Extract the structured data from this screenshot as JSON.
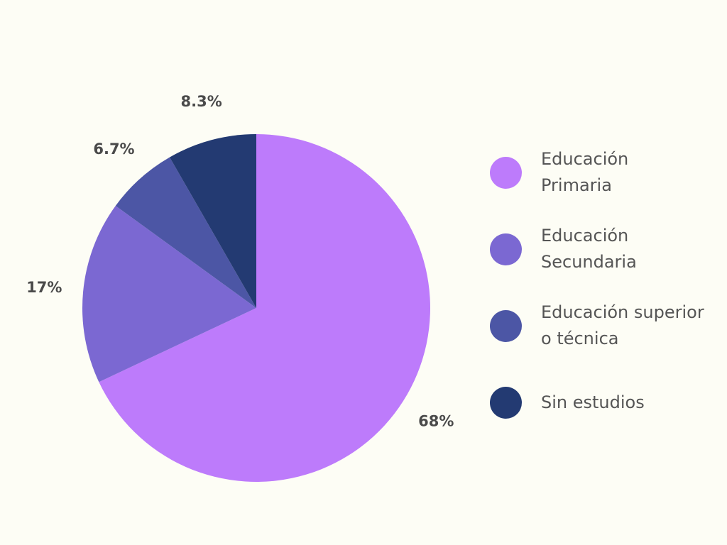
{
  "chart_data": {
    "type": "pie",
    "title": "",
    "slices": [
      {
        "label": "Educación\nPrimaria",
        "value": 68,
        "display": "68%",
        "color": "#bd7bfb"
      },
      {
        "label": "Educación\nSecundaria",
        "value": 17,
        "display": "17%",
        "color": "#7b68d2"
      },
      {
        "label": "Educación superior\no técnica",
        "value": 6.7,
        "display": "6.7%",
        "color": "#4c56a5"
      },
      {
        "label": "Sin estudios",
        "value": 8.3,
        "display": "8.3%",
        "color": "#233a72"
      }
    ],
    "legend_position": "right"
  }
}
